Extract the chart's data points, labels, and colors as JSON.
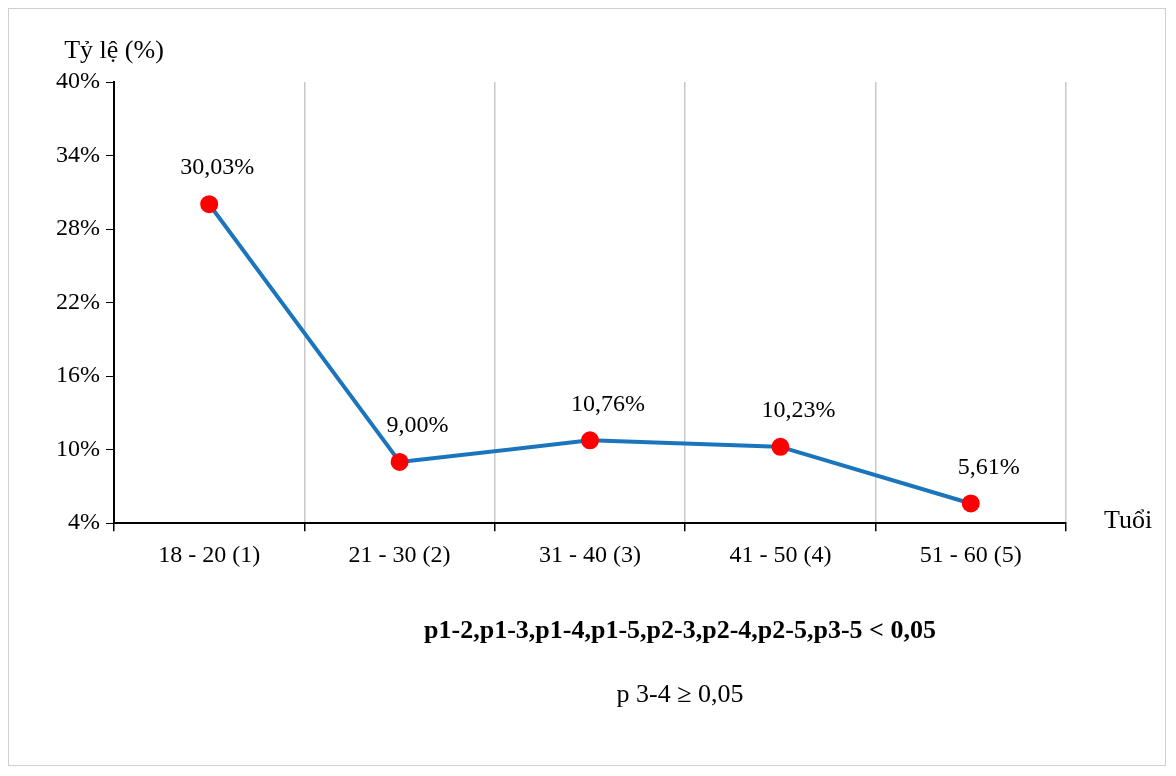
{
  "chart_data": {
    "type": "line",
    "xlabel": "Tuổi",
    "ylabel": "Tỷ lệ (%)",
    "categories": [
      "18 - 20 (1)",
      "21 - 30 (2)",
      "31 - 40 (3)",
      "41 - 50 (4)",
      "51 - 60 (5)"
    ],
    "series": [
      {
        "color": "#1b75bc",
        "colors": [
          "#ff0000",
          "#ff0000",
          "#ff0000",
          "#ff0000",
          "#ff0000"
        ],
        "values": [
          30.03,
          9.0,
          10.76,
          10.23,
          5.61
        ],
        "value_labels": [
          "30,03%",
          "9,00%",
          "10,76%",
          "10,23%",
          "5,61%"
        ]
      }
    ],
    "ylim": [
      4,
      40
    ],
    "yticks": [
      {
        "value": 4,
        "label": "4%"
      },
      {
        "value": 10,
        "label": "10%"
      },
      {
        "value": 16,
        "label": "16%"
      },
      {
        "value": 22,
        "label": "22%"
      },
      {
        "value": 28,
        "label": "28%"
      },
      {
        "value": 34,
        "label": "34%"
      },
      {
        "value": 40,
        "label": "40%"
      }
    ],
    "grid": "x",
    "legend": false,
    "marker": "circle",
    "line_style": "solid",
    "annotations": [
      "p1-2,p1-3,p1-4,p1-5,p2-3,p2-4,p2-5,p3-5 < 0,05",
      "p 3-4 ≥ 0,05"
    ]
  }
}
